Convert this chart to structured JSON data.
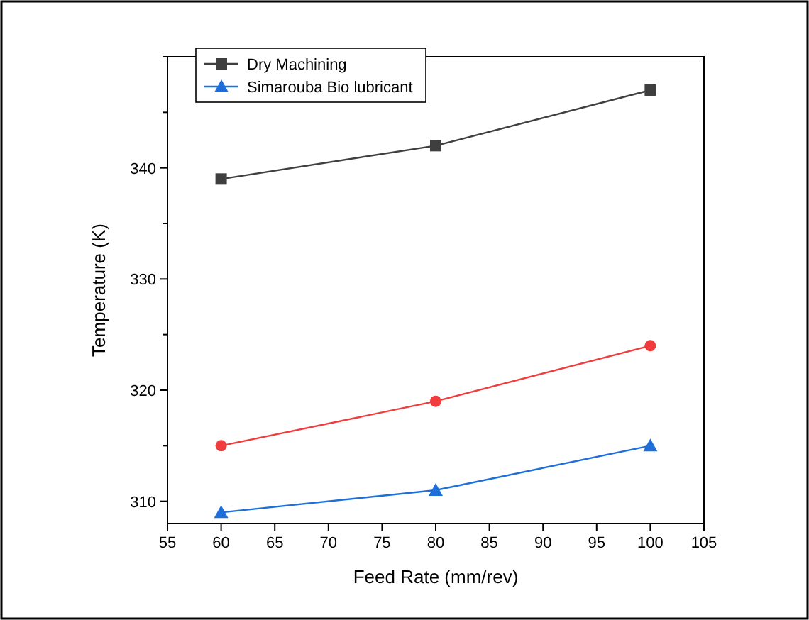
{
  "chart_data": {
    "type": "line",
    "xlabel": "Feed Rate (mm/rev)",
    "ylabel": "Temperature (K)",
    "x": [
      60,
      80,
      100
    ],
    "series": [
      {
        "name": "Dry Machining",
        "color": "#3f3f3f",
        "marker": "square",
        "values": [
          339,
          342,
          347
        ]
      },
      {
        "color": "#f03c3c",
        "marker": "circle",
        "values": [
          315,
          319,
          324
        ]
      },
      {
        "name": "Simarouba Bio lubricant",
        "color": "#1e6fd9",
        "marker": "triangle",
        "values": [
          309,
          311,
          315
        ]
      }
    ],
    "xlim": [
      55,
      105
    ],
    "xticks": [
      55,
      60,
      65,
      70,
      75,
      80,
      85,
      90,
      95,
      100,
      105
    ],
    "ylim": [
      308,
      350
    ],
    "yticks": [
      310,
      320,
      330,
      340
    ],
    "grid": false,
    "legend": "top left",
    "line_style": "solid"
  }
}
